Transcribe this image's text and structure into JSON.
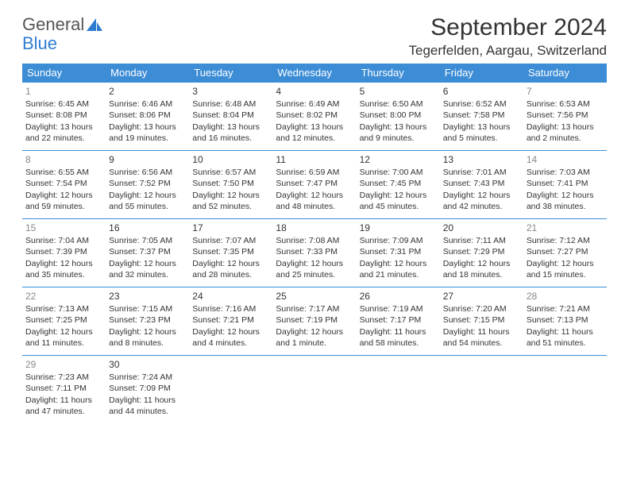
{
  "logo": {
    "text1": "General",
    "text2": "Blue"
  },
  "title": "September 2024",
  "location": "Tegerfelden, Aargau, Switzerland",
  "header_bg": "#3c8dd6",
  "header_fg": "#ffffff",
  "rule_color": "#3c8dd6",
  "weekdays": [
    "Sunday",
    "Monday",
    "Tuesday",
    "Wednesday",
    "Thursday",
    "Friday",
    "Saturday"
  ],
  "weeks": [
    [
      {
        "n": "1",
        "weekend": true,
        "sr": "Sunrise: 6:45 AM",
        "ss": "Sunset: 8:08 PM",
        "d1": "Daylight: 13 hours",
        "d2": "and 22 minutes."
      },
      {
        "n": "2",
        "sr": "Sunrise: 6:46 AM",
        "ss": "Sunset: 8:06 PM",
        "d1": "Daylight: 13 hours",
        "d2": "and 19 minutes."
      },
      {
        "n": "3",
        "sr": "Sunrise: 6:48 AM",
        "ss": "Sunset: 8:04 PM",
        "d1": "Daylight: 13 hours",
        "d2": "and 16 minutes."
      },
      {
        "n": "4",
        "sr": "Sunrise: 6:49 AM",
        "ss": "Sunset: 8:02 PM",
        "d1": "Daylight: 13 hours",
        "d2": "and 12 minutes."
      },
      {
        "n": "5",
        "sr": "Sunrise: 6:50 AM",
        "ss": "Sunset: 8:00 PM",
        "d1": "Daylight: 13 hours",
        "d2": "and 9 minutes."
      },
      {
        "n": "6",
        "sr": "Sunrise: 6:52 AM",
        "ss": "Sunset: 7:58 PM",
        "d1": "Daylight: 13 hours",
        "d2": "and 5 minutes."
      },
      {
        "n": "7",
        "weekend": true,
        "sr": "Sunrise: 6:53 AM",
        "ss": "Sunset: 7:56 PM",
        "d1": "Daylight: 13 hours",
        "d2": "and 2 minutes."
      }
    ],
    [
      {
        "n": "8",
        "weekend": true,
        "sr": "Sunrise: 6:55 AM",
        "ss": "Sunset: 7:54 PM",
        "d1": "Daylight: 12 hours",
        "d2": "and 59 minutes."
      },
      {
        "n": "9",
        "sr": "Sunrise: 6:56 AM",
        "ss": "Sunset: 7:52 PM",
        "d1": "Daylight: 12 hours",
        "d2": "and 55 minutes."
      },
      {
        "n": "10",
        "sr": "Sunrise: 6:57 AM",
        "ss": "Sunset: 7:50 PM",
        "d1": "Daylight: 12 hours",
        "d2": "and 52 minutes."
      },
      {
        "n": "11",
        "sr": "Sunrise: 6:59 AM",
        "ss": "Sunset: 7:47 PM",
        "d1": "Daylight: 12 hours",
        "d2": "and 48 minutes."
      },
      {
        "n": "12",
        "sr": "Sunrise: 7:00 AM",
        "ss": "Sunset: 7:45 PM",
        "d1": "Daylight: 12 hours",
        "d2": "and 45 minutes."
      },
      {
        "n": "13",
        "sr": "Sunrise: 7:01 AM",
        "ss": "Sunset: 7:43 PM",
        "d1": "Daylight: 12 hours",
        "d2": "and 42 minutes."
      },
      {
        "n": "14",
        "weekend": true,
        "sr": "Sunrise: 7:03 AM",
        "ss": "Sunset: 7:41 PM",
        "d1": "Daylight: 12 hours",
        "d2": "and 38 minutes."
      }
    ],
    [
      {
        "n": "15",
        "weekend": true,
        "sr": "Sunrise: 7:04 AM",
        "ss": "Sunset: 7:39 PM",
        "d1": "Daylight: 12 hours",
        "d2": "and 35 minutes."
      },
      {
        "n": "16",
        "sr": "Sunrise: 7:05 AM",
        "ss": "Sunset: 7:37 PM",
        "d1": "Daylight: 12 hours",
        "d2": "and 32 minutes."
      },
      {
        "n": "17",
        "sr": "Sunrise: 7:07 AM",
        "ss": "Sunset: 7:35 PM",
        "d1": "Daylight: 12 hours",
        "d2": "and 28 minutes."
      },
      {
        "n": "18",
        "sr": "Sunrise: 7:08 AM",
        "ss": "Sunset: 7:33 PM",
        "d1": "Daylight: 12 hours",
        "d2": "and 25 minutes."
      },
      {
        "n": "19",
        "sr": "Sunrise: 7:09 AM",
        "ss": "Sunset: 7:31 PM",
        "d1": "Daylight: 12 hours",
        "d2": "and 21 minutes."
      },
      {
        "n": "20",
        "sr": "Sunrise: 7:11 AM",
        "ss": "Sunset: 7:29 PM",
        "d1": "Daylight: 12 hours",
        "d2": "and 18 minutes."
      },
      {
        "n": "21",
        "weekend": true,
        "sr": "Sunrise: 7:12 AM",
        "ss": "Sunset: 7:27 PM",
        "d1": "Daylight: 12 hours",
        "d2": "and 15 minutes."
      }
    ],
    [
      {
        "n": "22",
        "weekend": true,
        "sr": "Sunrise: 7:13 AM",
        "ss": "Sunset: 7:25 PM",
        "d1": "Daylight: 12 hours",
        "d2": "and 11 minutes."
      },
      {
        "n": "23",
        "sr": "Sunrise: 7:15 AM",
        "ss": "Sunset: 7:23 PM",
        "d1": "Daylight: 12 hours",
        "d2": "and 8 minutes."
      },
      {
        "n": "24",
        "sr": "Sunrise: 7:16 AM",
        "ss": "Sunset: 7:21 PM",
        "d1": "Daylight: 12 hours",
        "d2": "and 4 minutes."
      },
      {
        "n": "25",
        "sr": "Sunrise: 7:17 AM",
        "ss": "Sunset: 7:19 PM",
        "d1": "Daylight: 12 hours",
        "d2": "and 1 minute."
      },
      {
        "n": "26",
        "sr": "Sunrise: 7:19 AM",
        "ss": "Sunset: 7:17 PM",
        "d1": "Daylight: 11 hours",
        "d2": "and 58 minutes."
      },
      {
        "n": "27",
        "sr": "Sunrise: 7:20 AM",
        "ss": "Sunset: 7:15 PM",
        "d1": "Daylight: 11 hours",
        "d2": "and 54 minutes."
      },
      {
        "n": "28",
        "weekend": true,
        "sr": "Sunrise: 7:21 AM",
        "ss": "Sunset: 7:13 PM",
        "d1": "Daylight: 11 hours",
        "d2": "and 51 minutes."
      }
    ],
    [
      {
        "n": "29",
        "weekend": true,
        "sr": "Sunrise: 7:23 AM",
        "ss": "Sunset: 7:11 PM",
        "d1": "Daylight: 11 hours",
        "d2": "and 47 minutes."
      },
      {
        "n": "30",
        "sr": "Sunrise: 7:24 AM",
        "ss": "Sunset: 7:09 PM",
        "d1": "Daylight: 11 hours",
        "d2": "and 44 minutes."
      },
      null,
      null,
      null,
      null,
      null
    ]
  ]
}
